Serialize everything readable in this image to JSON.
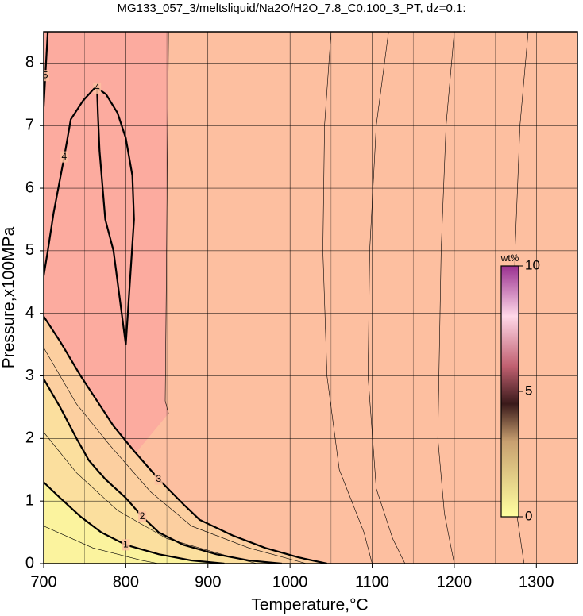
{
  "chart_data": {
    "type": "contour",
    "title": "MG133_057_3/meltsliquid/Na2O/H2O_7.8_C0.100_3_PT, dz=0.1:",
    "xlabel": "Temperature,°C",
    "ylabel": "Pressure,x100MPa",
    "xlim": [
      700,
      1350
    ],
    "ylim": [
      0,
      8.5
    ],
    "xticks": [
      700,
      800,
      900,
      1000,
      1100,
      1200,
      1300
    ],
    "yticks": [
      0,
      1,
      2,
      3,
      4,
      5,
      6,
      7,
      8
    ],
    "grid": true,
    "background": "#fdbfa0",
    "contours": [
      {
        "level": 3.6,
        "fill": "#fcab9f",
        "corner": "top-left",
        "x": [
          852,
          851,
          850,
          849,
          848,
          852
        ],
        "y": [
          8.5,
          7.0,
          5.5,
          4.0,
          2.6,
          2.4
        ]
      },
      {
        "level": 3.5,
        "x": [
          1050,
          1042,
          1040,
          1045,
          1060,
          1090,
          1100
        ],
        "y": [
          8.5,
          7.0,
          5.0,
          3.0,
          1.5,
          0.5,
          0
        ]
      },
      {
        "level": 3.4,
        "x": [
          1120,
          1105,
          1097,
          1095,
          1105,
          1125,
          1140
        ],
        "y": [
          8.5,
          7.0,
          5.0,
          3.0,
          1.2,
          0.4,
          0
        ]
      },
      {
        "level": 3.3,
        "x": [
          1200,
          1190,
          1184,
          1180,
          1188,
          1200
        ],
        "y": [
          8.5,
          7.0,
          5.0,
          2.0,
          0.8,
          0
        ]
      },
      {
        "level": 3.2,
        "x": [
          1290,
          1280,
          1274,
          1270,
          1276,
          1285
        ],
        "y": [
          8.5,
          7.0,
          5.0,
          2.0,
          0.8,
          0
        ]
      },
      {
        "level": 3,
        "fill": "#fccfa0",
        "corner": "bottom-left",
        "x": [
          700,
          720,
          745,
          765,
          785,
          810,
          840,
          870,
          890,
          930,
          970,
          1010,
          1045
        ],
        "y": [
          3.95,
          3.55,
          3.0,
          2.6,
          2.2,
          1.8,
          1.35,
          0.95,
          0.7,
          0.45,
          0.25,
          0.1,
          0
        ]
      },
      {
        "level": 2.5,
        "x": [
          700,
          740,
          780,
          830,
          880,
          950,
          1020
        ],
        "y": [
          3.45,
          2.55,
          1.9,
          1.15,
          0.6,
          0.25,
          0
        ]
      },
      {
        "level": 2,
        "fill": "#fbdf9e",
        "corner": "bottom-left",
        "x": [
          700,
          720,
          740,
          755,
          775,
          800,
          820,
          840,
          870,
          910,
          950,
          990
        ],
        "y": [
          2.95,
          2.5,
          2.0,
          1.65,
          1.35,
          1.05,
          0.75,
          0.5,
          0.3,
          0.15,
          0.05,
          0
        ]
      },
      {
        "level": 1.5,
        "x": [
          700,
          740,
          790,
          850,
          930,
          960
        ],
        "y": [
          2.1,
          1.45,
          0.85,
          0.4,
          0.1,
          0
        ]
      },
      {
        "level": 1,
        "fill": "#fbf39e",
        "corner": "bottom-left",
        "x": [
          700,
          720,
          745,
          770,
          800,
          840,
          880,
          920
        ],
        "y": [
          1.3,
          1.05,
          0.75,
          0.5,
          0.3,
          0.15,
          0.05,
          0
        ]
      },
      {
        "level": 0.5,
        "x": [
          700,
          760,
          820,
          840
        ],
        "y": [
          0.6,
          0.25,
          0.05,
          0
        ]
      },
      {
        "level": 4,
        "x": [
          800,
          805,
          810,
          808,
          800,
          790,
          776,
          765,
          766,
          768,
          775,
          785,
          795,
          800
        ],
        "y": [
          3.5,
          4.5,
          5.5,
          6.2,
          6.8,
          7.2,
          7.5,
          7.6,
          7.2,
          6.6,
          5.5,
          5.0,
          4.0,
          3.5
        ]
      },
      {
        "level": 4,
        "x": [
          700,
          705,
          712,
          725,
          733,
          748,
          762
        ],
        "y": [
          4.6,
          5.0,
          5.6,
          6.5,
          7.1,
          7.4,
          7.6
        ]
      },
      {
        "level": 5,
        "x": [
          700,
          702,
          705
        ],
        "y": [
          7.3,
          7.8,
          8.5
        ]
      }
    ],
    "colorbar": {
      "label": "wt%",
      "zlim": [
        0,
        10
      ],
      "ticks": [
        0,
        5,
        10
      ],
      "stops": [
        {
          "value": 0,
          "color": "#ffffa0"
        },
        {
          "value": 3,
          "color": "#c8a070"
        },
        {
          "value": 4.5,
          "color": "#3a1a1a"
        },
        {
          "value": 6,
          "color": "#c06070"
        },
        {
          "value": 8,
          "color": "#ffd8e8"
        },
        {
          "value": 10,
          "color": "#9a3090"
        }
      ]
    }
  }
}
